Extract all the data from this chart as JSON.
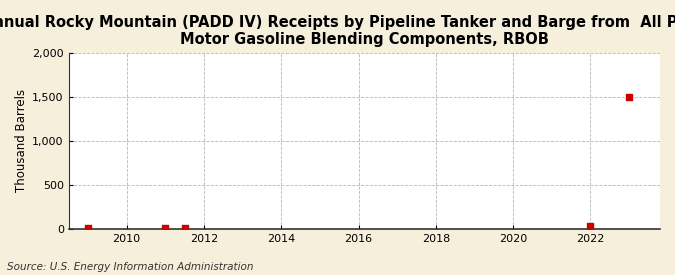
{
  "title": "Annual Rocky Mountain (PADD IV) Receipts by Pipeline Tanker and Barge from  All PADD's of\nMotor Gasoline Blending Components, RBOB",
  "ylabel": "Thousand Barrels",
  "source": "Source: U.S. Energy Information Administration",
  "background_color": "#f5efdc",
  "plot_bg_color": "#ffffff",
  "x_data": [
    2009,
    2011,
    2011.5,
    2022,
    2023
  ],
  "y_data": [
    2,
    5,
    10,
    35,
    1500
  ],
  "xlim": [
    2008.5,
    2023.8
  ],
  "ylim": [
    0,
    2000
  ],
  "yticks": [
    0,
    500,
    1000,
    1500,
    2000
  ],
  "xticks": [
    2010,
    2012,
    2014,
    2016,
    2018,
    2020,
    2022
  ],
  "marker_color": "#cc0000",
  "marker_size": 4,
  "grid_color": "#999999",
  "title_fontsize": 10.5,
  "label_fontsize": 8.5,
  "tick_fontsize": 8,
  "source_fontsize": 7.5
}
